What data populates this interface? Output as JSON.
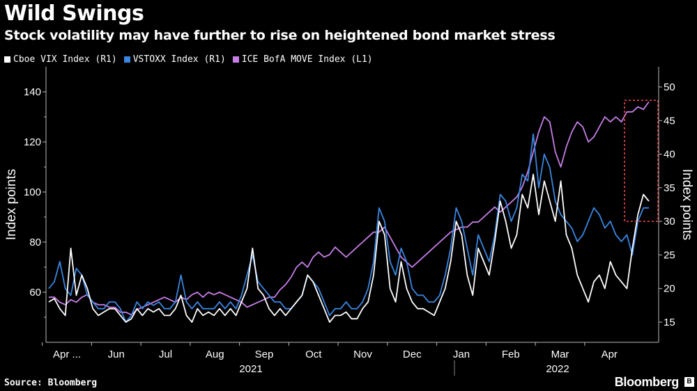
{
  "title": "Wild Swings",
  "subtitle": "Stock volatility may have further to rise on heightened bond market stress",
  "source": "Source: Bloomberg",
  "brand": "Bloomberg",
  "chart_data": {
    "type": "line",
    "x_tick_labels": [
      "Apr ...",
      "Jun",
      "Jul",
      "Aug",
      "Sep",
      "Oct",
      "Nov",
      "Dec",
      "Jan",
      "Feb",
      "Mar",
      "Apr"
    ],
    "year_labels": [
      "2021",
      "2022"
    ],
    "ylabel_left": "Index points",
    "ylabel_right": "Index points",
    "left_ticks": [
      60,
      80,
      100,
      120,
      140
    ],
    "right_ticks": [
      15,
      20,
      25,
      30,
      35,
      40,
      45,
      50
    ],
    "ylim_left": [
      40,
      150
    ],
    "ylim_right": [
      12,
      53
    ],
    "legend_position": "top-left",
    "grid": false,
    "series": [
      {
        "name": "Cboe VIX Index (R1)",
        "axis": "right",
        "color": "#ffffff",
        "values": [
          18,
          18.5,
          17,
          16,
          26,
          19,
          22,
          20,
          17,
          16,
          16.5,
          17,
          17,
          16,
          15,
          15.5,
          17,
          16,
          17,
          16.5,
          17,
          16,
          16,
          17,
          19,
          16,
          15,
          17,
          16,
          16.5,
          16,
          17,
          16,
          17,
          16,
          18,
          20,
          26,
          20,
          19,
          17,
          16,
          17,
          16,
          17,
          18,
          19,
          22,
          21,
          19,
          17,
          15,
          16,
          16,
          16.5,
          15.5,
          15.5,
          17,
          18,
          22,
          30,
          28,
          20,
          18,
          24,
          20,
          18,
          17,
          17,
          16.5,
          16,
          18,
          20,
          24,
          30,
          28,
          22,
          19,
          26,
          24,
          22,
          27,
          33,
          30,
          26,
          28,
          34,
          32,
          37,
          31,
          36,
          33,
          30,
          36,
          28,
          26,
          22,
          20,
          18,
          21,
          22,
          20,
          24,
          22,
          21,
          20,
          26,
          31,
          34,
          33
        ]
      },
      {
        "name": "VSTOXX Index (R1)",
        "axis": "right",
        "color": "#3a86e0",
        "values": [
          20,
          21,
          24,
          20,
          19,
          23,
          22,
          19,
          18,
          17,
          17,
          18,
          18,
          17,
          15,
          16,
          18,
          17,
          18,
          17.5,
          18,
          17,
          17,
          18,
          22,
          18,
          17,
          18,
          17,
          17,
          17,
          18,
          17,
          18,
          17,
          19,
          22,
          25,
          21,
          20,
          19,
          18,
          18,
          17,
          17,
          18,
          19,
          22,
          21,
          20,
          18,
          16,
          17,
          17,
          18,
          17,
          17,
          18,
          20,
          24,
          32,
          30,
          24,
          22,
          26,
          24,
          20,
          19,
          19,
          18,
          18,
          19,
          22,
          26,
          32,
          30,
          26,
          22,
          28,
          26,
          24,
          28,
          34,
          33,
          30,
          32,
          37,
          36,
          43,
          35,
          40,
          38,
          33,
          31,
          30,
          29,
          27,
          28,
          30,
          32,
          31,
          29,
          30,
          28,
          27,
          28,
          25,
          30,
          32,
          32
        ]
      },
      {
        "name": "ICE BofA MOVE Index  (L1)",
        "axis": "left",
        "color": "#c77ee8",
        "values": [
          58,
          58,
          56,
          55,
          57,
          56,
          58,
          59,
          56,
          55,
          55,
          54,
          54,
          52,
          52,
          51,
          53,
          54,
          55,
          56,
          57,
          58,
          57,
          56,
          58,
          57,
          59,
          60,
          58,
          60,
          59,
          60,
          59,
          58,
          57,
          56,
          54,
          55,
          56,
          57,
          58,
          58,
          61,
          63,
          66,
          70,
          72,
          70,
          74,
          76,
          74,
          75,
          78,
          76,
          74,
          76,
          78,
          80,
          82,
          84,
          84,
          86,
          82,
          78,
          74,
          72,
          70,
          72,
          74,
          76,
          78,
          80,
          82,
          84,
          85,
          86,
          86,
          88,
          88,
          90,
          92,
          94,
          92,
          94,
          96,
          98,
          102,
          108,
          116,
          124,
          130,
          128,
          116,
          110,
          118,
          124,
          128,
          126,
          120,
          122,
          126,
          130,
          128,
          130,
          128,
          132,
          132,
          134,
          133,
          136
        ]
      }
    ],
    "annotations": [
      {
        "type": "dashed-box",
        "color": "#ff4d4d",
        "target": "recent MOVE Index readings",
        "x_from": "Apr",
        "y_right_from": 30,
        "y_right_to": 48
      }
    ]
  }
}
